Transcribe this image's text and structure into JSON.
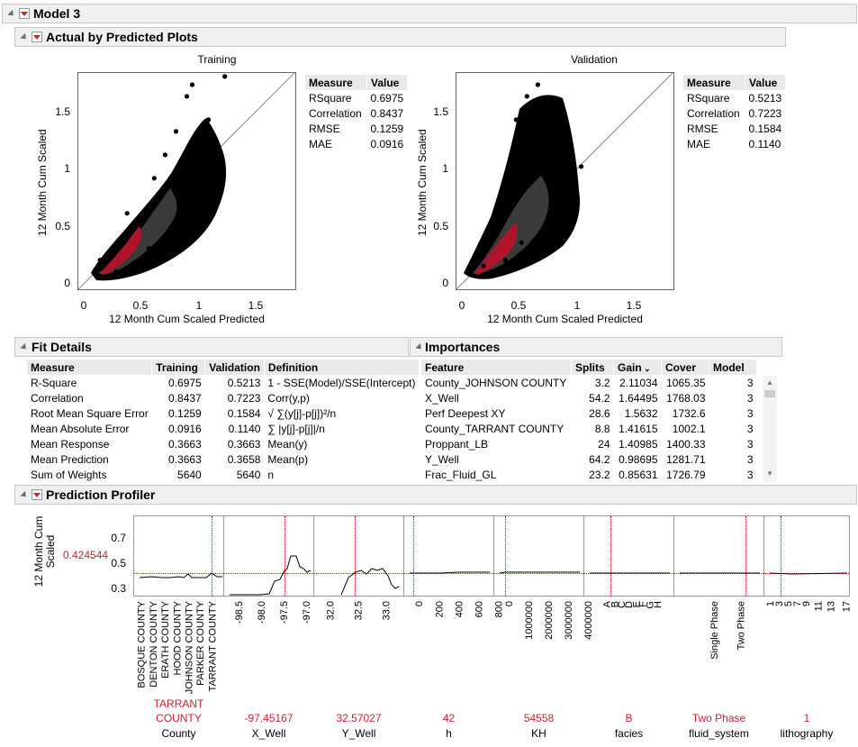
{
  "model": {
    "title": "Model 3"
  },
  "avp": {
    "title": "Actual by Predicted Plots",
    "y_label": "12 Month Cum Scaled",
    "x_label": "12 Month Cum Scaled Predicted",
    "y_ticks": [
      "1.5",
      "1",
      "0.5",
      "0"
    ],
    "x_ticks": [
      "0",
      "0.5",
      "1",
      "1.5"
    ],
    "training": {
      "title": "Training",
      "measures": {
        "header": [
          "Measure",
          "Value"
        ],
        "rows": [
          [
            "RSquare",
            "0.6975"
          ],
          [
            "Correlation",
            "0.8437"
          ],
          [
            "RMSE",
            "0.1259"
          ],
          [
            "MAE",
            "0.0916"
          ]
        ]
      }
    },
    "validation": {
      "title": "Validation",
      "measures": {
        "header": [
          "Measure",
          "Value"
        ],
        "rows": [
          [
            "RSquare",
            "0.5213"
          ],
          [
            "Correlation",
            "0.7223"
          ],
          [
            "RMSE",
            "0.1584"
          ],
          [
            "MAE",
            "0.1140"
          ]
        ]
      }
    }
  },
  "chart_data": [
    {
      "type": "scatter",
      "title": "Training",
      "xlabel": "12 Month Cum Scaled Predicted",
      "ylabel": "12 Month Cum Scaled",
      "xlim": [
        -0.1,
        1.9
      ],
      "ylim": [
        -0.05,
        1.8
      ],
      "reference_line": "y = x",
      "points": [
        [
          0.45,
          0.55
        ],
        [
          0.6,
          0.9
        ],
        [
          0.7,
          1.1
        ],
        [
          0.8,
          1.3
        ],
        [
          0.9,
          1.6
        ],
        [
          0.95,
          1.7
        ],
        [
          1.1,
          1.4
        ],
        [
          1.25,
          1.77
        ],
        [
          0.55,
          0.3
        ],
        [
          0.75,
          0.45
        ],
        [
          0.95,
          0.85
        ],
        [
          1.05,
          1.0
        ],
        [
          0.35,
          0.6
        ],
        [
          0.25,
          0.1
        ],
        [
          0.1,
          0.2
        ]
      ]
    },
    {
      "type": "scatter",
      "title": "Validation",
      "xlabel": "12 Month Cum Scaled Predicted",
      "ylabel": "12 Month Cum Scaled",
      "xlim": [
        -0.1,
        1.9
      ],
      "ylim": [
        -0.05,
        1.8
      ],
      "reference_line": "y = x",
      "points": [
        [
          0.3,
          0.7
        ],
        [
          0.45,
          1.4
        ],
        [
          0.55,
          1.6
        ],
        [
          0.65,
          1.7
        ],
        [
          0.7,
          1.5
        ],
        [
          0.85,
          1.3
        ],
        [
          0.95,
          1.2
        ],
        [
          1.05,
          1.0
        ],
        [
          0.35,
          0.2
        ],
        [
          0.5,
          0.35
        ],
        [
          0.8,
          0.6
        ],
        [
          0.15,
          0.15
        ],
        [
          0.6,
          1.1
        ],
        [
          0.75,
          0.9
        ]
      ]
    }
  ],
  "fit": {
    "title": "Fit Details",
    "header": [
      "Measure",
      "Training",
      "Validation",
      "Definition"
    ],
    "rows": [
      [
        "R-Square",
        "0.6975",
        "0.5213",
        "1 - SSE(Model)/SSE(Intercept)"
      ],
      [
        "Correlation",
        "0.8437",
        "0.7223",
        "Corr(y,p)"
      ],
      [
        "Root Mean Square Error",
        "0.1259",
        "0.1584",
        "√ ∑(y[j]-p[j])²/n"
      ],
      [
        "Mean Absolute Error",
        "0.0916",
        "0.1140",
        "∑ |y[j]-p[j]|/n"
      ],
      [
        "Mean Response",
        "0.3663",
        "0.3663",
        "Mean(y)"
      ],
      [
        "Mean Prediction",
        "0.3663",
        "0.3658",
        "Mean(p)"
      ],
      [
        "Sum of Weights",
        "5640",
        "5640",
        "n"
      ]
    ]
  },
  "imp": {
    "title": "Importances",
    "header": [
      "Feature",
      "Splits",
      "Gain",
      "Cover",
      "Model"
    ],
    "rows": [
      [
        "County_JOHNSON COUNTY",
        "3.2",
        "2.11034",
        "1065.35",
        "3"
      ],
      [
        "X_Well",
        "54.2",
        "1.64495",
        "1768.03",
        "3"
      ],
      [
        "Perf Deepest XY",
        "28.6",
        "1.5632",
        "1732.6",
        "3"
      ],
      [
        "County_TARRANT COUNTY",
        "8.8",
        "1.41615",
        "1002.1",
        "3"
      ],
      [
        "Proppant_LB",
        "24",
        "1.40985",
        "1400.33",
        "3"
      ],
      [
        "Y_Well",
        "64.2",
        "0.98695",
        "1281.71",
        "3"
      ],
      [
        "Frac_Fluid_GL",
        "23.2",
        "0.85631",
        "1726.79",
        "3"
      ]
    ]
  },
  "profiler": {
    "title": "Prediction Profiler",
    "y_label": "12 Month Cum Scaled",
    "y_value": "0.424544",
    "y_ticks": [
      "0.7",
      "0.5",
      "0.3"
    ],
    "factors": [
      {
        "name": "County",
        "value_line1": "TARRANT",
        "value_line2": "COUNTY",
        "ticks": [
          "BOSQUE COUNTY",
          "DENTON COUNTY",
          "ERATH COUNTY",
          "HOOD COUNTY",
          "JOHNSON COUNTY",
          "PARKER COUNTY",
          "TARRANT COUNTY"
        ]
      },
      {
        "name": "X_Well",
        "value": "-97.45167",
        "ticks": [
          "-98.5",
          "-98.0",
          "-97.5",
          "-97.0"
        ]
      },
      {
        "name": "Y_Well",
        "value": "32.57027",
        "ticks": [
          "32.0",
          "32.5",
          "33.0"
        ]
      },
      {
        "name": "h",
        "value": "42",
        "ticks": [
          "0",
          "200",
          "400",
          "600",
          "800"
        ]
      },
      {
        "name": "KH",
        "value": "54558",
        "ticks": [
          "0",
          "1000000",
          "2000000",
          "3000000",
          "4000000"
        ]
      },
      {
        "name": "facies",
        "value": "B",
        "ticks": [
          "A",
          "B",
          "C",
          "D",
          "E",
          "F",
          "G",
          "H"
        ]
      },
      {
        "name": "fluid_system",
        "value": "Two Phase",
        "ticks": [
          "Single Phase",
          "Two Phase"
        ]
      },
      {
        "name": "lithography",
        "value": "1",
        "ticks": [
          "1",
          "3",
          "5",
          "7",
          "9",
          "11",
          "13",
          "17"
        ]
      }
    ]
  },
  "colors": {
    "accent_red": "#d2202e",
    "density_dark": "#3a3a3a",
    "density_core": "#b0142a"
  }
}
